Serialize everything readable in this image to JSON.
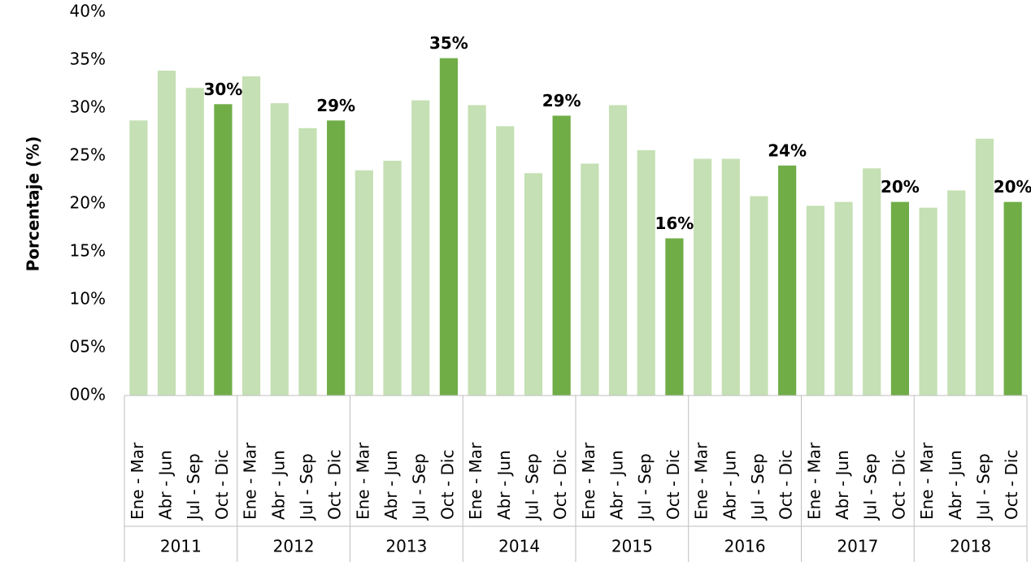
{
  "chart_data": {
    "type": "bar",
    "y_label": "Porcentaje (%)",
    "categories": [
      "Ene - Mar",
      "Abr - Jun",
      "Jul - Sep",
      "Oct - Dic",
      "Ene - Mar",
      "Abr - Jun",
      "Jul - Sep",
      "Oct - Dic",
      "Ene - Mar",
      "Abr - Jun",
      "Jul - Sep",
      "Oct - Dic",
      "Ene - Mar",
      "Abr - Jun",
      "Jul - Sep",
      "Oct - Dic",
      "Ene - Mar",
      "Abr - Jun",
      "Jul - Sep",
      "Oct - Dic",
      "Ene - Mar",
      "Abr - Jun",
      "Jul - Sep",
      "Oct - Dic",
      "Ene - Mar",
      "Abr - Jun",
      "Jul - Sep",
      "Oct - Dic",
      "Ene - Mar",
      "Abr - Jun",
      "Jul - Sep",
      "Oct - Dic"
    ],
    "groups": [
      "2011",
      "2012",
      "2013",
      "2014",
      "2015",
      "2016",
      "2017",
      "2018"
    ],
    "values": [
      28.7,
      33.9,
      32.1,
      30.4,
      33.3,
      30.5,
      27.9,
      28.7,
      23.5,
      24.5,
      30.8,
      35.2,
      30.3,
      28.1,
      23.2,
      29.2,
      24.2,
      30.3,
      25.6,
      16.4,
      24.7,
      24.7,
      20.8,
      24.0,
      19.8,
      20.2,
      23.7,
      20.2,
      19.6,
      21.4,
      26.8,
      20.2
    ],
    "value_labels": [
      null,
      null,
      null,
      "30%",
      null,
      null,
      null,
      "29%",
      null,
      null,
      null,
      "35%",
      null,
      null,
      null,
      "29%",
      null,
      null,
      null,
      "16%",
      null,
      null,
      null,
      "24%",
      null,
      null,
      null,
      "20%",
      null,
      null,
      null,
      "20%"
    ],
    "colors": [
      "#c5e0b4",
      "#c5e0b4",
      "#c5e0b4",
      "#70ad47",
      "#c5e0b4",
      "#c5e0b4",
      "#c5e0b4",
      "#70ad47",
      "#c5e0b4",
      "#c5e0b4",
      "#c5e0b4",
      "#70ad47",
      "#c5e0b4",
      "#c5e0b4",
      "#c5e0b4",
      "#70ad47",
      "#c5e0b4",
      "#c5e0b4",
      "#c5e0b4",
      "#70ad47",
      "#c5e0b4",
      "#c5e0b4",
      "#c5e0b4",
      "#70ad47",
      "#c5e0b4",
      "#c5e0b4",
      "#c5e0b4",
      "#70ad47",
      "#c5e0b4",
      "#c5e0b4",
      "#c5e0b4",
      "#70ad47"
    ],
    "ylim": [
      0,
      40
    ],
    "yticks": [
      {
        "value": 0,
        "label": "00%"
      },
      {
        "value": 5,
        "label": "05%"
      },
      {
        "value": 10,
        "label": "10%"
      },
      {
        "value": 15,
        "label": "15%"
      },
      {
        "value": 20,
        "label": "20%"
      },
      {
        "value": 25,
        "label": "25%"
      },
      {
        "value": 30,
        "label": "30%"
      },
      {
        "value": 35,
        "label": "35%"
      },
      {
        "value": 40,
        "label": "40%"
      }
    ],
    "grid": false
  }
}
